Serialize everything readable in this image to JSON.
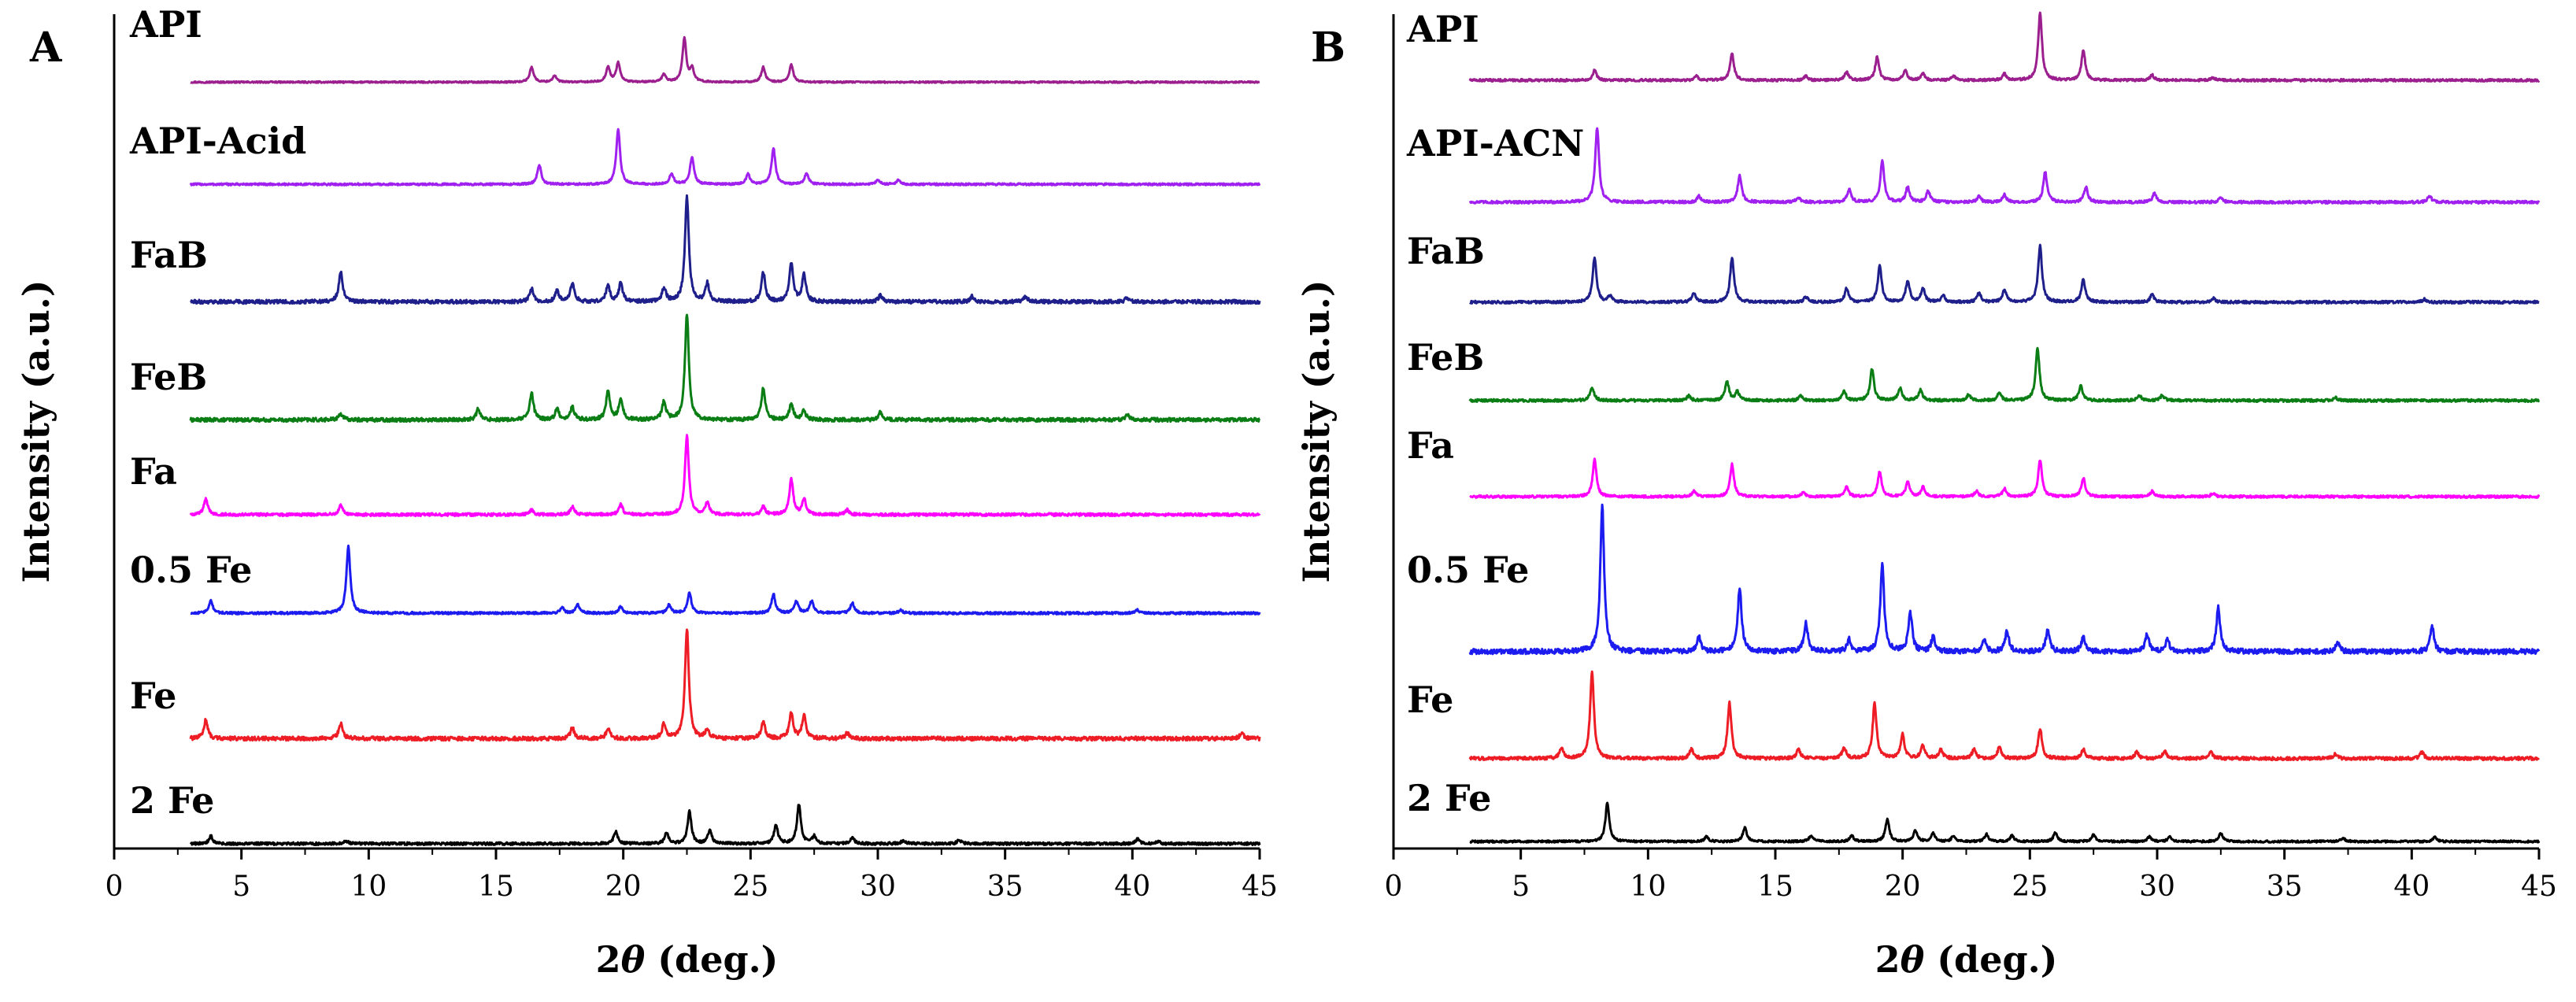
{
  "chart_data": [
    {
      "type": "line",
      "panel": "A",
      "title": "",
      "xlabel_prefix": "2",
      "xlabel_symbol": "θ",
      "xlabel_suffix": " (deg.)",
      "ylabel": "Intensity (a.u.)",
      "xlim": [
        0,
        45
      ],
      "xticks": [
        0,
        5,
        10,
        15,
        20,
        25,
        30,
        35,
        40,
        45
      ],
      "grid": false,
      "legend": "inline labels",
      "series": [
        {
          "name": "API",
          "color": "#9b1f8e",
          "x_start": 3,
          "x_end": 45,
          "peaks": [
            [
              16.4,
              0.35
            ],
            [
              17.3,
              0.15
            ],
            [
              19.4,
              0.35
            ],
            [
              19.8,
              0.45
            ],
            [
              21.6,
              0.18
            ],
            [
              22.4,
              1.0
            ],
            [
              22.7,
              0.3
            ],
            [
              25.5,
              0.35
            ],
            [
              26.6,
              0.4
            ]
          ]
        },
        {
          "name": "API-Acid",
          "color": "#a020f0",
          "x_start": 3,
          "x_end": 45,
          "peaks": [
            [
              16.7,
              0.35
            ],
            [
              19.8,
              1.0
            ],
            [
              21.9,
              0.2
            ],
            [
              22.7,
              0.5
            ],
            [
              24.9,
              0.18
            ],
            [
              25.9,
              0.65
            ],
            [
              27.2,
              0.2
            ],
            [
              30.0,
              0.08
            ],
            [
              30.8,
              0.08
            ]
          ]
        },
        {
          "name": "FaB",
          "color": "#1f1f8c",
          "x_start": 3,
          "x_end": 45,
          "peaks": [
            [
              8.9,
              0.28
            ],
            [
              16.4,
              0.12
            ],
            [
              17.4,
              0.1
            ],
            [
              18.0,
              0.17
            ],
            [
              19.4,
              0.15
            ],
            [
              19.9,
              0.17
            ],
            [
              21.6,
              0.13
            ],
            [
              22.5,
              1.0
            ],
            [
              23.3,
              0.17
            ],
            [
              25.5,
              0.28
            ],
            [
              26.6,
              0.36
            ],
            [
              27.1,
              0.25
            ],
            [
              30.1,
              0.06
            ],
            [
              33.7,
              0.05
            ],
            [
              35.8,
              0.05
            ],
            [
              39.8,
              0.04
            ]
          ]
        },
        {
          "name": "FeB",
          "color": "#0a7e14",
          "x_start": 3,
          "x_end": 45,
          "peaks": [
            [
              8.9,
              0.06
            ],
            [
              14.3,
              0.1
            ],
            [
              16.4,
              0.25
            ],
            [
              17.4,
              0.1
            ],
            [
              18.0,
              0.12
            ],
            [
              19.4,
              0.27
            ],
            [
              19.9,
              0.2
            ],
            [
              21.6,
              0.17
            ],
            [
              22.5,
              1.0
            ],
            [
              25.5,
              0.3
            ],
            [
              26.6,
              0.15
            ],
            [
              27.1,
              0.08
            ],
            [
              30.1,
              0.07
            ],
            [
              39.8,
              0.05
            ]
          ]
        },
        {
          "name": "Fa",
          "color": "#ff00ff",
          "x_start": 3,
          "x_end": 45,
          "peaks": [
            [
              3.6,
              0.2
            ],
            [
              8.9,
              0.12
            ],
            [
              16.4,
              0.06
            ],
            [
              18.0,
              0.1
            ],
            [
              19.9,
              0.13
            ],
            [
              22.5,
              1.0
            ],
            [
              23.3,
              0.15
            ],
            [
              25.5,
              0.1
            ],
            [
              26.6,
              0.45
            ],
            [
              27.1,
              0.2
            ],
            [
              28.8,
              0.06
            ]
          ]
        },
        {
          "name": "0.5 Fe",
          "color": "#1c1cf0",
          "x_start": 3,
          "x_end": 45,
          "peaks": [
            [
              3.8,
              0.18
            ],
            [
              9.2,
              1.0
            ],
            [
              17.6,
              0.08
            ],
            [
              18.2,
              0.13
            ],
            [
              19.9,
              0.1
            ],
            [
              21.8,
              0.12
            ],
            [
              22.6,
              0.3
            ],
            [
              25.9,
              0.28
            ],
            [
              26.8,
              0.18
            ],
            [
              27.4,
              0.18
            ],
            [
              29.0,
              0.15
            ],
            [
              30.9,
              0.05
            ],
            [
              40.2,
              0.05
            ]
          ]
        },
        {
          "name": "Fe",
          "color": "#ee1c24",
          "x_start": 3,
          "x_end": 45,
          "peaks": [
            [
              3.6,
              0.17
            ],
            [
              8.9,
              0.14
            ],
            [
              18.0,
              0.1
            ],
            [
              19.4,
              0.09
            ],
            [
              21.6,
              0.13
            ],
            [
              22.5,
              1.0
            ],
            [
              23.3,
              0.08
            ],
            [
              25.5,
              0.15
            ],
            [
              26.6,
              0.23
            ],
            [
              27.1,
              0.21
            ],
            [
              28.8,
              0.05
            ],
            [
              44.3,
              0.05
            ]
          ]
        },
        {
          "name": "2 Fe",
          "color": "#000000",
          "x_start": 3,
          "x_end": 45,
          "peaks": [
            [
              3.8,
              0.1
            ],
            [
              9.1,
              0.04
            ],
            [
              19.7,
              0.16
            ],
            [
              21.7,
              0.14
            ],
            [
              22.6,
              0.43
            ],
            [
              23.4,
              0.18
            ],
            [
              26.0,
              0.25
            ],
            [
              26.9,
              0.52
            ],
            [
              27.5,
              0.1
            ],
            [
              29.0,
              0.08
            ],
            [
              31.0,
              0.04
            ],
            [
              33.2,
              0.05
            ],
            [
              40.2,
              0.06
            ],
            [
              41.0,
              0.03
            ]
          ]
        }
      ]
    },
    {
      "type": "line",
      "panel": "B",
      "title": "",
      "xlabel_prefix": "2",
      "xlabel_symbol": "θ",
      "xlabel_suffix": " (deg.)",
      "ylabel": "Intensity (a.u.)",
      "xlim": [
        0,
        45
      ],
      "xticks": [
        0,
        5,
        10,
        15,
        20,
        25,
        30,
        35,
        40,
        45
      ],
      "grid": false,
      "legend": "inline labels",
      "series": [
        {
          "name": "API",
          "color": "#9b1f8e",
          "x_start": 3,
          "x_end": 45,
          "peaks": [
            [
              7.9,
              0.15
            ],
            [
              11.9,
              0.06
            ],
            [
              13.3,
              0.4
            ],
            [
              16.2,
              0.06
            ],
            [
              17.8,
              0.12
            ],
            [
              19.0,
              0.35
            ],
            [
              20.1,
              0.15
            ],
            [
              20.8,
              0.1
            ],
            [
              22.0,
              0.06
            ],
            [
              24.0,
              0.1
            ],
            [
              25.4,
              1.0
            ],
            [
              27.1,
              0.45
            ],
            [
              29.8,
              0.08
            ],
            [
              32.2,
              0.04
            ]
          ]
        },
        {
          "name": "API-ACN",
          "color": "#a020f0",
          "x_start": 3,
          "x_end": 45,
          "peaks": [
            [
              8.0,
              1.0
            ],
            [
              12.0,
              0.08
            ],
            [
              13.6,
              0.36
            ],
            [
              15.9,
              0.06
            ],
            [
              17.9,
              0.17
            ],
            [
              19.2,
              0.55
            ],
            [
              20.2,
              0.2
            ],
            [
              21.0,
              0.15
            ],
            [
              23.0,
              0.08
            ],
            [
              24.0,
              0.1
            ],
            [
              25.6,
              0.4
            ],
            [
              27.2,
              0.2
            ],
            [
              29.9,
              0.12
            ],
            [
              32.5,
              0.06
            ],
            [
              40.7,
              0.08
            ]
          ]
        },
        {
          "name": "FaB",
          "color": "#1f1f8c",
          "x_start": 3,
          "x_end": 45,
          "peaks": [
            [
              7.9,
              0.6
            ],
            [
              8.5,
              0.08
            ],
            [
              11.8,
              0.12
            ],
            [
              13.3,
              0.6
            ],
            [
              16.2,
              0.07
            ],
            [
              17.8,
              0.18
            ],
            [
              19.1,
              0.48
            ],
            [
              20.2,
              0.28
            ],
            [
              20.8,
              0.18
            ],
            [
              21.6,
              0.08
            ],
            [
              23.0,
              0.12
            ],
            [
              24.0,
              0.17
            ],
            [
              25.4,
              0.75
            ],
            [
              27.1,
              0.3
            ],
            [
              29.8,
              0.1
            ],
            [
              32.2,
              0.05
            ],
            [
              40.5,
              0.04
            ]
          ]
        },
        {
          "name": "FeB",
          "color": "#0a7e14",
          "x_start": 3,
          "x_end": 45,
          "peaks": [
            [
              7.8,
              0.18
            ],
            [
              11.6,
              0.06
            ],
            [
              13.1,
              0.25
            ],
            [
              13.5,
              0.12
            ],
            [
              16.0,
              0.06
            ],
            [
              17.7,
              0.12
            ],
            [
              18.8,
              0.42
            ],
            [
              19.9,
              0.16
            ],
            [
              20.7,
              0.14
            ],
            [
              22.6,
              0.08
            ],
            [
              23.8,
              0.1
            ],
            [
              25.3,
              0.7
            ],
            [
              27.0,
              0.2
            ],
            [
              29.3,
              0.07
            ],
            [
              30.2,
              0.07
            ],
            [
              37.0,
              0.04
            ]
          ]
        },
        {
          "name": "Fa",
          "color": "#ff00ff",
          "x_start": 3,
          "x_end": 45,
          "peaks": [
            [
              7.9,
              0.55
            ],
            [
              11.8,
              0.08
            ],
            [
              13.3,
              0.48
            ],
            [
              16.1,
              0.06
            ],
            [
              17.8,
              0.14
            ],
            [
              19.1,
              0.37
            ],
            [
              20.2,
              0.22
            ],
            [
              20.8,
              0.14
            ],
            [
              22.9,
              0.08
            ],
            [
              24.0,
              0.12
            ],
            [
              25.4,
              0.55
            ],
            [
              27.1,
              0.28
            ],
            [
              29.8,
              0.08
            ],
            [
              32.2,
              0.05
            ]
          ]
        },
        {
          "name": "0.5 Fe",
          "color": "#1c1cf0",
          "x_start": 3,
          "x_end": 45,
          "peaks": [
            [
              8.2,
              1.0
            ],
            [
              12.0,
              0.1
            ],
            [
              13.6,
              0.44
            ],
            [
              16.2,
              0.2
            ],
            [
              17.9,
              0.08
            ],
            [
              19.2,
              0.6
            ],
            [
              20.3,
              0.27
            ],
            [
              21.2,
              0.1
            ],
            [
              23.2,
              0.08
            ],
            [
              24.1,
              0.14
            ],
            [
              25.7,
              0.14
            ],
            [
              27.1,
              0.1
            ],
            [
              29.6,
              0.12
            ],
            [
              30.4,
              0.08
            ],
            [
              32.4,
              0.3
            ],
            [
              37.1,
              0.06
            ],
            [
              40.8,
              0.17
            ]
          ]
        },
        {
          "name": "Fe",
          "color": "#ee1c24",
          "x_start": 3,
          "x_end": 45,
          "peaks": [
            [
              6.6,
              0.12
            ],
            [
              7.8,
              0.95
            ],
            [
              11.7,
              0.1
            ],
            [
              13.2,
              0.62
            ],
            [
              15.9,
              0.1
            ],
            [
              17.7,
              0.12
            ],
            [
              18.9,
              0.62
            ],
            [
              20.0,
              0.26
            ],
            [
              20.8,
              0.14
            ],
            [
              21.5,
              0.1
            ],
            [
              22.8,
              0.1
            ],
            [
              23.8,
              0.12
            ],
            [
              25.4,
              0.33
            ],
            [
              27.1,
              0.1
            ],
            [
              29.2,
              0.07
            ],
            [
              30.3,
              0.08
            ],
            [
              32.1,
              0.08
            ],
            [
              37.0,
              0.05
            ],
            [
              40.4,
              0.07
            ]
          ]
        },
        {
          "name": "2 Fe",
          "color": "#000000",
          "x_start": 3,
          "x_end": 45,
          "peaks": [
            [
              8.4,
              0.65
            ],
            [
              12.3,
              0.08
            ],
            [
              13.8,
              0.24
            ],
            [
              16.4,
              0.1
            ],
            [
              18.0,
              0.1
            ],
            [
              19.4,
              0.38
            ],
            [
              20.5,
              0.18
            ],
            [
              21.2,
              0.14
            ],
            [
              22.0,
              0.1
            ],
            [
              23.3,
              0.12
            ],
            [
              24.3,
              0.1
            ],
            [
              26.0,
              0.15
            ],
            [
              27.5,
              0.12
            ],
            [
              29.7,
              0.08
            ],
            [
              30.5,
              0.08
            ],
            [
              32.5,
              0.14
            ],
            [
              37.3,
              0.06
            ],
            [
              40.9,
              0.07
            ]
          ]
        }
      ]
    }
  ]
}
